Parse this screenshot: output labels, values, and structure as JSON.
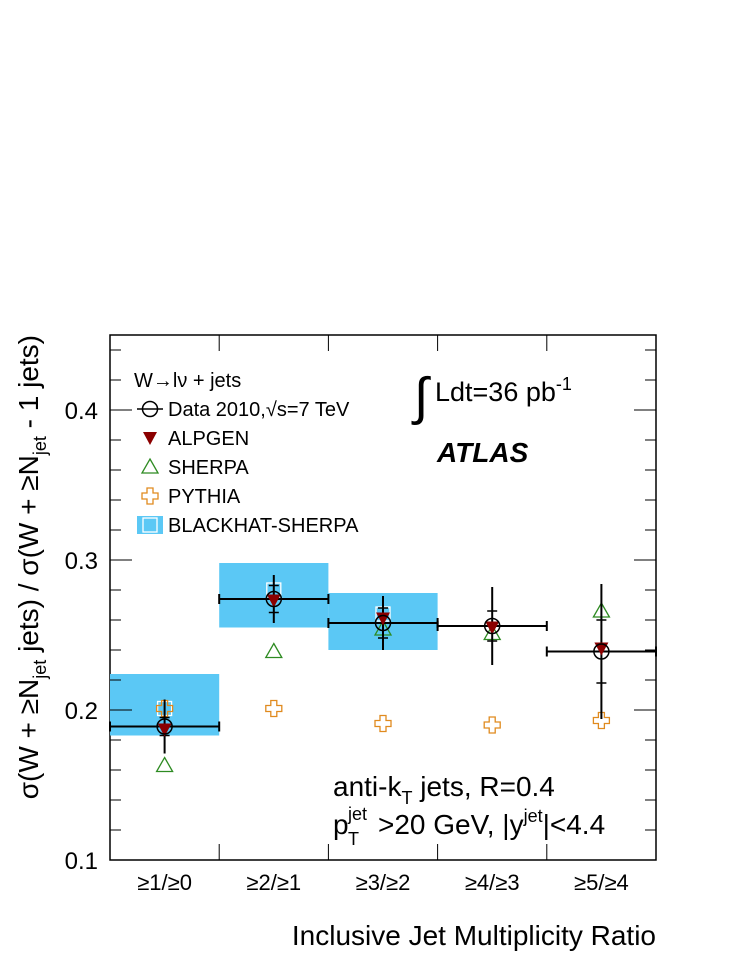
{
  "chart_data": {
    "type": "scatter",
    "categories": [
      "≥1/≥0",
      "≥2/≥1",
      "≥3/≥2",
      "≥4/≥3",
      "≥5/≥4"
    ],
    "xlabel": "Inclusive Jet Multiplicity Ratio",
    "ylabel": {
      "p1": "σ(W + ≥N",
      "sub1": "jet",
      "p2": " jets) / σ(W + ≥N",
      "sub2": "jet",
      "p3": " - 1 jets)"
    },
    "ylim": [
      0.1,
      0.45
    ],
    "yticks": [
      "0.1",
      "0.2",
      "0.3",
      "0.4"
    ],
    "legend_title": "W→lν + jets",
    "legend_position": "top-left",
    "series": [
      {
        "name": "Data 2010,√s=7 TeV",
        "marker": "open-circle",
        "color": "#000000",
        "values": [
          0.189,
          0.274,
          0.258,
          0.256,
          0.239
        ],
        "err_stat": [
          0.006,
          0.009,
          0.01,
          0.01,
          0.021
        ],
        "err_tot": [
          0.018,
          0.016,
          0.018,
          0.026,
          0.045
        ]
      },
      {
        "name": "ALPGEN",
        "marker": "filled-triangle-down",
        "color": "#8b0000",
        "values": [
          0.187,
          0.273,
          0.261,
          0.255,
          0.241
        ]
      },
      {
        "name": "SHERPA",
        "marker": "open-triangle-up",
        "color": "#2e8b22",
        "values": [
          0.163,
          0.239,
          0.254,
          0.251,
          0.266
        ]
      },
      {
        "name": "PYTHIA",
        "marker": "open-cross",
        "color": "#e08a1e",
        "values": [
          0.201,
          0.201,
          0.191,
          0.19,
          0.193
        ]
      },
      {
        "name": "BLACKHAT-SHERPA",
        "marker": "band",
        "color": "#5bc8f5",
        "values": [
          0.201,
          0.28,
          0.264,
          null,
          null
        ],
        "band_lo": [
          0.183,
          0.255,
          0.24,
          null,
          null
        ],
        "band_hi": [
          0.224,
          0.298,
          0.278,
          null,
          null
        ]
      }
    ],
    "annotations": {
      "lumi": "Ldt=36 pb",
      "lumi_sup": "-1",
      "experiment": "ATLAS",
      "algo_a": "anti-k",
      "algo_sub": "T",
      "algo_b": " jets, R=0.4",
      "cut_p": "p",
      "cut_sup1": "jet",
      "cut_sub1": "T",
      "cut_b": ">20 GeV, |y",
      "cut_sup2": "jet",
      "cut_c": "|<4.4"
    }
  }
}
